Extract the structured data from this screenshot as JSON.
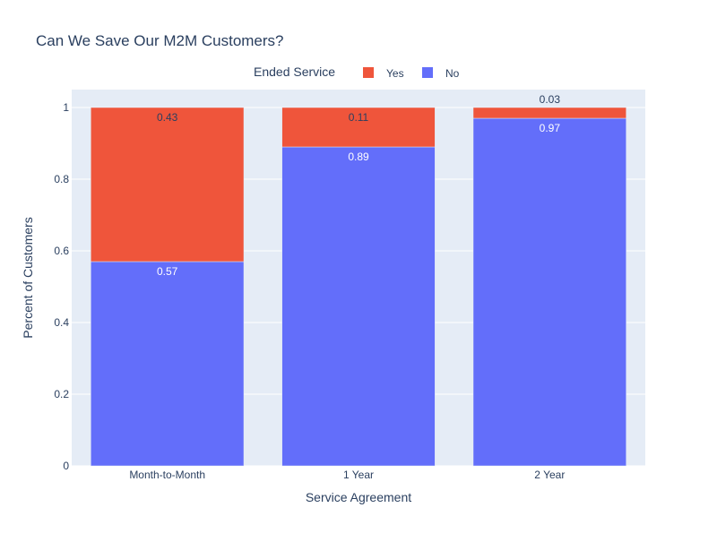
{
  "chart_data": {
    "type": "bar",
    "stacked": true,
    "title": "Can We Save Our M2M Customers?",
    "xlabel": "Service Agreement",
    "ylabel": "Percent of Customers",
    "categories": [
      "Month-to-Month",
      "1 Year",
      "2 Year"
    ],
    "ylim": [
      0,
      1.05
    ],
    "yticks": [
      0,
      0.2,
      0.4,
      0.6,
      0.8,
      1
    ],
    "ytick_labels": [
      "0",
      "0.2",
      "0.4",
      "0.6",
      "0.8",
      "1"
    ],
    "legend": {
      "title": "Ended Service",
      "placement": "top-center",
      "entries": [
        "Yes",
        "No"
      ]
    },
    "series": [
      {
        "name": "No",
        "values": [
          0.57,
          0.89,
          0.97
        ],
        "labels": [
          "0.57",
          "0.89",
          "0.97"
        ],
        "color": "#636efa"
      },
      {
        "name": "Yes",
        "values": [
          0.43,
          0.11,
          0.03
        ],
        "labels": [
          "0.43",
          "0.11",
          "0.03"
        ],
        "color": "#ef553b"
      }
    ],
    "grid": true,
    "colors": {
      "plot_background": "#e5ecf6",
      "grid": "#ffffff",
      "text": "#2a3f5f"
    }
  }
}
